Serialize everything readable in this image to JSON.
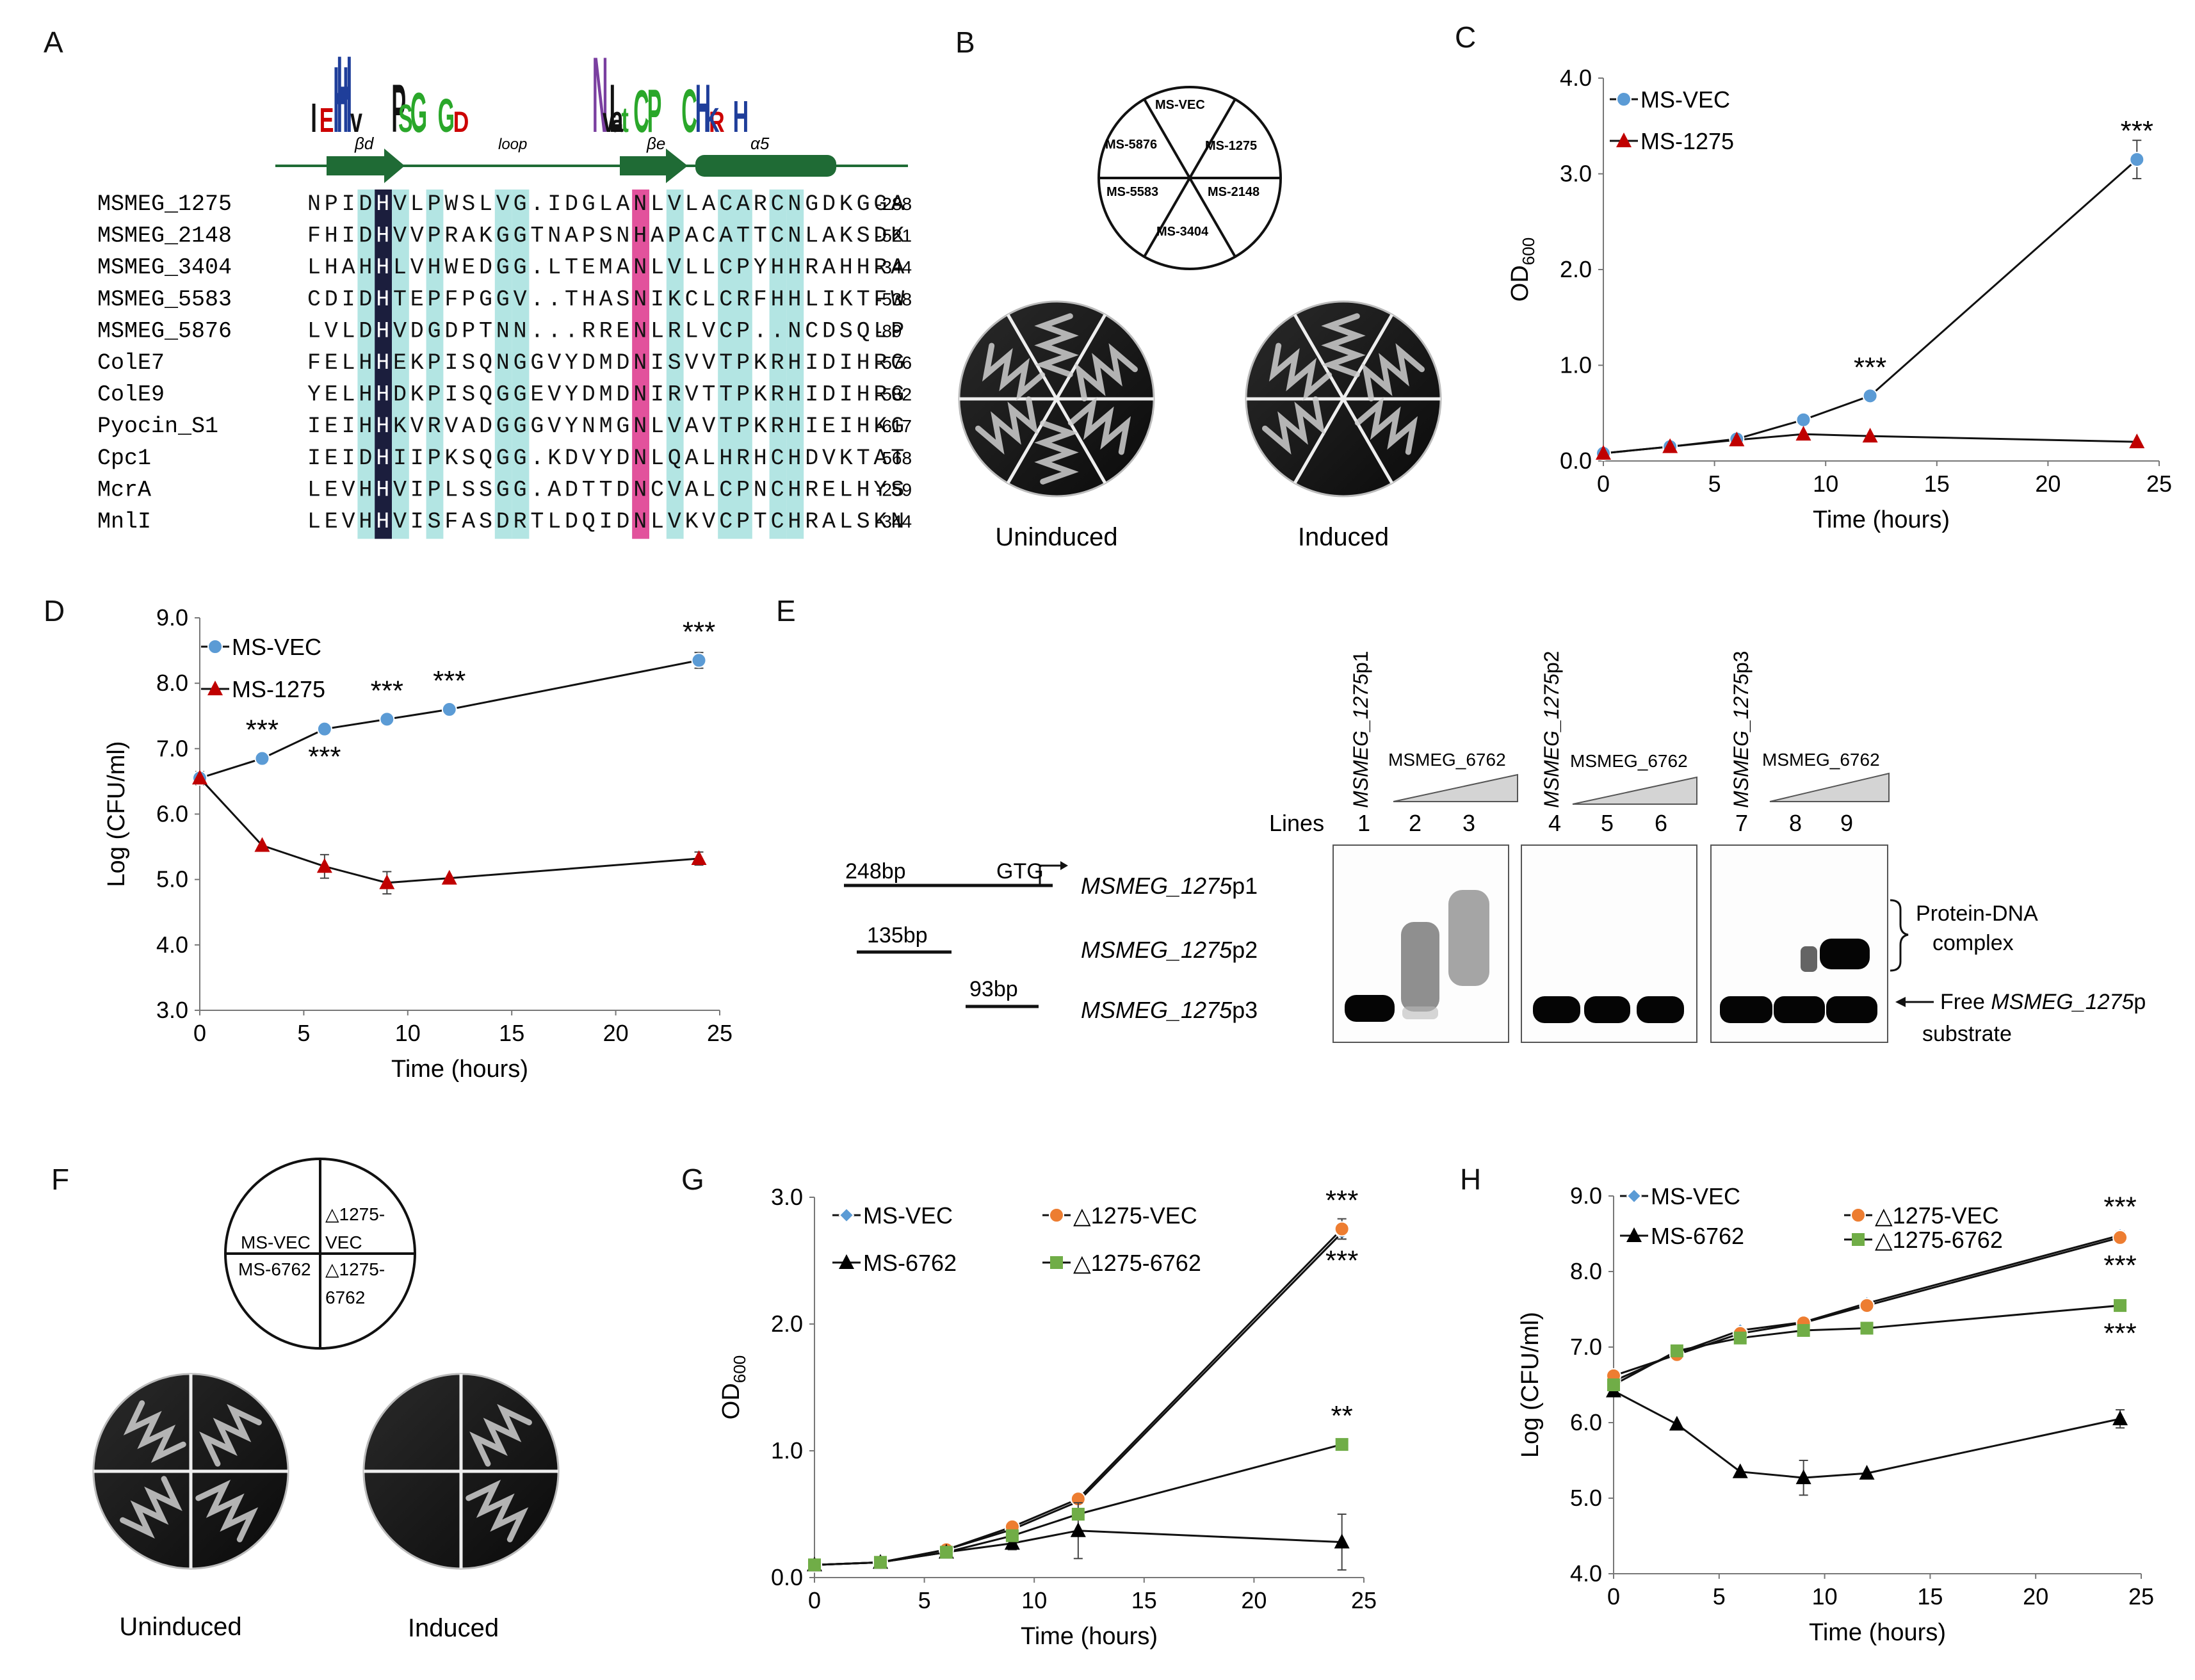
{
  "figure": {
    "panel_labels": [
      "A",
      "B",
      "C",
      "D",
      "E",
      "F",
      "G",
      "H"
    ]
  },
  "panelA": {
    "ss_labels": [
      "βd",
      "loop",
      "βe",
      "α5"
    ],
    "logo_letters": [
      {
        "t": "E",
        "c": "#cc0000"
      },
      {
        "t": "I",
        "c": "#111"
      },
      {
        "t": "H",
        "c": "#1f3e9a"
      },
      {
        "t": "H",
        "c": "#1f3e9a"
      },
      {
        "t": "v",
        "c": "#111"
      },
      {
        "t": "P",
        "c": "#111"
      },
      {
        "t": "S",
        "c": "#2aa72a"
      },
      {
        "t": "G",
        "c": "#2aa72a"
      },
      {
        "t": "G",
        "c": "#2aa72a"
      },
      {
        "t": "D",
        "c": "#cc0000"
      },
      {
        "t": "N",
        "c": "#7a3fa0"
      },
      {
        "t": "L",
        "c": "#111"
      },
      {
        "t": "v",
        "c": "#111"
      },
      {
        "t": "a",
        "c": "#111"
      },
      {
        "t": "t",
        "c": "#2aa72a"
      },
      {
        "t": "C",
        "c": "#2aa72a"
      },
      {
        "t": "P",
        "c": "#2aa72a"
      },
      {
        "t": "C",
        "c": "#2aa72a"
      },
      {
        "t": "H",
        "c": "#1f3e9a"
      },
      {
        "t": "R",
        "c": "#cc0000"
      },
      {
        "t": "K",
        "c": "#1f3e9a"
      },
      {
        "t": "H",
        "c": "#1f3e9a"
      }
    ],
    "sequences": [
      {
        "name": "MSMEG_1275",
        "seq": "NPIDHVLPWSLVG.IDGLANLVLACARCNGDKGGA",
        "end": "-288"
      },
      {
        "name": "MSMEG_2148",
        "seq": "FHIDHVVPRAKGGTNAPSNHAPACATTCNLAKSDK",
        "end": "-521"
      },
      {
        "name": "MSMEG_3404",
        "seq": "LHAHHLVHWEDGG.LTEMANLVLLCPYHHRAHHRA",
        "end": "-344"
      },
      {
        "name": "MSMEG_5583",
        "seq": "CDIDHTEPFPGGV..THASNIKCLCRFHHLIKTFW",
        "end": "-538"
      },
      {
        "name": "MSMEG_5876",
        "seq": "LVLDHVDGDPTNN...RRENLRLVCP..NCDSQLP",
        "end": "-89"
      },
      {
        "name": "ColE7",
        "seq": "FELHHEKPISQNGGVYDMDNISVVTPKRHIDIHRG",
        "end": "-576"
      },
      {
        "name": "ColE9",
        "seq": "YELHHDKPISQGGEVYDMDNIRVTTPKRHIDIHRG",
        "end": "-582"
      },
      {
        "name": "Pyocin_S1",
        "seq": "IEIHHKVRVADGGGVYNMGNLVAVTPKRHIEIHKG",
        "end": "-617"
      },
      {
        "name": "Cpc1",
        "seq": "IEIDHIIPKSQGG.KDVYDNLQALHRHCHDVKTAT",
        "end": "-568"
      },
      {
        "name": "McrA",
        "seq": "LEVHHVIPLSSGG.ADTTDNCVALCPNCHRELHYS",
        "end": "-259"
      },
      {
        "name": "MnlI",
        "seq": "LEVHHVISFASDRTLDQIDNLVKVCPTCHRALSKN",
        "end": "-344"
      }
    ]
  },
  "panelB": {
    "sectors": [
      "MS-VEC",
      "MS-1275",
      "MS-2148",
      "MS-3404",
      "MS-5583",
      "MS-5876"
    ],
    "plate_labels": [
      "Uninduced",
      "Induced"
    ]
  },
  "panelC": {
    "chart_data": {
      "type": "line",
      "title": "",
      "xlabel": "Time (hours)",
      "ylabel": "OD600",
      "ylabel_main": "OD",
      "ylabel_sub": "600",
      "xlim": [
        0,
        25
      ],
      "ylim": [
        0,
        4
      ],
      "xticks": [
        "0",
        "5",
        "10",
        "15",
        "20",
        "25"
      ],
      "yticks": [
        "0.0",
        "1.0",
        "2.0",
        "3.0",
        "4.0"
      ],
      "series": [
        {
          "name": "MS-VEC",
          "color": "#5b9bd5",
          "marker": "circle",
          "x": [
            0,
            3,
            6,
            9,
            12,
            24
          ],
          "y": [
            0.08,
            0.15,
            0.23,
            0.43,
            0.68,
            3.15
          ],
          "err": [
            0,
            0,
            0,
            0,
            0,
            0.2
          ]
        },
        {
          "name": "MS-1275",
          "color": "#c00000",
          "marker": "triangle",
          "x": [
            0,
            3,
            6,
            9,
            12,
            24
          ],
          "y": [
            0.08,
            0.15,
            0.22,
            0.28,
            0.26,
            0.2
          ],
          "err": [
            0,
            0,
            0,
            0,
            0,
            0
          ]
        }
      ],
      "annotations": [
        {
          "x": 12,
          "y": 0.68,
          "text": "***"
        },
        {
          "x": 24,
          "y": 3.15,
          "text": "***"
        }
      ]
    }
  },
  "panelD": {
    "chart_data": {
      "type": "line",
      "title": "",
      "xlabel": "Time (hours)",
      "ylabel": "Log (CFU/ml)",
      "xlim": [
        0,
        25
      ],
      "ylim": [
        3,
        9
      ],
      "xticks": [
        "0",
        "5",
        "10",
        "15",
        "20",
        "25"
      ],
      "yticks": [
        "3.0",
        "4.0",
        "5.0",
        "6.0",
        "7.0",
        "8.0",
        "9.0"
      ],
      "series": [
        {
          "name": "MS-VEC",
          "color": "#5b9bd5",
          "marker": "circle",
          "x": [
            0,
            3,
            6,
            9,
            12,
            24
          ],
          "y": [
            6.55,
            6.85,
            7.3,
            7.45,
            7.6,
            8.35
          ],
          "err": [
            0.1,
            0,
            0,
            0,
            0,
            0.12
          ]
        },
        {
          "name": "MS-1275",
          "color": "#c00000",
          "marker": "triangle",
          "x": [
            0,
            3,
            6,
            9,
            12,
            24
          ],
          "y": [
            6.55,
            5.52,
            5.2,
            4.95,
            5.02,
            5.32
          ],
          "err": [
            0,
            0,
            0.18,
            0.17,
            0,
            0.1
          ]
        }
      ],
      "annotations": [
        {
          "x": 3,
          "y": 6.85,
          "text": "***",
          "pos": "above"
        },
        {
          "x": 6,
          "y": 7.3,
          "text": "***",
          "pos": "below"
        },
        {
          "x": 9,
          "y": 7.45,
          "text": "***",
          "pos": "above"
        },
        {
          "x": 12,
          "y": 7.6,
          "text": "***",
          "pos": "above"
        },
        {
          "x": 24,
          "y": 8.35,
          "text": "***",
          "pos": "above"
        }
      ]
    }
  },
  "panelE": {
    "fragments": [
      {
        "size": "248bp",
        "name_italic": "MSMEG_1275",
        "name_suffix": "p1"
      },
      {
        "size": "135bp",
        "name_italic": "MSMEG_1275",
        "name_suffix": "p2"
      },
      {
        "size": "93bp",
        "name_italic": "MSMEG_1275",
        "name_suffix": "p3"
      }
    ],
    "gtg": "GTG",
    "lines_label": "Lines",
    "lane_numbers": [
      "1",
      "2",
      "3",
      "4",
      "5",
      "6",
      "7",
      "8",
      "9"
    ],
    "protein": "MSMEG_6762",
    "gel_titles": [
      {
        "italic": "MSMEG_1275",
        "suffix": "p1"
      },
      {
        "italic": "MSMEG_1275",
        "suffix": "p2"
      },
      {
        "italic": "MSMEG_1275",
        "suffix": "p3"
      }
    ],
    "complex_label_1": "Protein-DNA",
    "complex_label_2": "complex",
    "free_label_1a": "Free ",
    "free_label_1b": "MSMEG_1275",
    "free_label_1c": "p",
    "free_label_2": "substrate"
  },
  "panelF": {
    "sectors": [
      "MS-VEC",
      "△1275-",
      "VEC",
      "MS-6762",
      "△1275-",
      "6762"
    ],
    "plate_labels": [
      "Uninduced",
      "Induced"
    ]
  },
  "panelG": {
    "chart_data": {
      "type": "line",
      "title": "",
      "xlabel": "Time (hours)",
      "ylabel": "OD600",
      "ylabel_main": "OD",
      "ylabel_sub": "600",
      "xlim": [
        0,
        25
      ],
      "ylim": [
        0,
        3
      ],
      "xticks": [
        "0",
        "5",
        "10",
        "15",
        "20",
        "25"
      ],
      "yticks": [
        "0.0",
        "1.0",
        "2.0",
        "3.0"
      ],
      "series": [
        {
          "name": "MS-VEC",
          "color": "#5b9bd5",
          "marker": "diamond",
          "x": [
            0,
            3,
            6,
            9,
            12,
            24
          ],
          "y": [
            0.1,
            0.12,
            0.22,
            0.38,
            0.6,
            2.72
          ],
          "err": [
            0,
            0,
            0,
            0,
            0,
            0.05
          ]
        },
        {
          "name": "△1275-VEC",
          "color": "#ed7d31",
          "marker": "circle",
          "x": [
            0,
            3,
            6,
            9,
            12,
            24
          ],
          "y": [
            0.1,
            0.12,
            0.22,
            0.4,
            0.62,
            2.75
          ],
          "err": [
            0,
            0,
            0,
            0,
            0,
            0.08
          ]
        },
        {
          "name": "MS-6762",
          "color": "#000000",
          "marker": "triangle",
          "x": [
            0,
            3,
            6,
            9,
            12,
            24
          ],
          "y": [
            0.1,
            0.12,
            0.2,
            0.27,
            0.37,
            0.28
          ],
          "err": [
            0,
            0,
            0,
            0.05,
            0.22,
            0.22
          ]
        },
        {
          "name": "△1275-6762",
          "color": "#70ad47",
          "marker": "square",
          "x": [
            0,
            3,
            6,
            9,
            12,
            24
          ],
          "y": [
            0.1,
            0.12,
            0.2,
            0.33,
            0.5,
            1.05
          ],
          "err": [
            0,
            0,
            0,
            0,
            0,
            0.03
          ]
        }
      ],
      "annotations": [
        {
          "x": 24,
          "y": 2.75,
          "text": "***",
          "pos": "above"
        },
        {
          "x": 24,
          "y": 2.72,
          "text": "***",
          "pos": "below"
        },
        {
          "x": 24,
          "y": 1.05,
          "text": "**",
          "pos": "above"
        }
      ]
    }
  },
  "panelH": {
    "chart_data": {
      "type": "line",
      "title": "",
      "xlabel": "Time (hours)",
      "ylabel": "Log (CFU/ml)",
      "xlim": [
        0,
        25
      ],
      "ylim": [
        4,
        9
      ],
      "xticks": [
        "0",
        "5",
        "10",
        "15",
        "20",
        "25"
      ],
      "yticks": [
        "4.0",
        "5.0",
        "6.0",
        "7.0",
        "8.0",
        "9.0"
      ],
      "series": [
        {
          "name": "MS-VEC",
          "color": "#5b9bd5",
          "marker": "diamond",
          "x": [
            0,
            3,
            6,
            9,
            12,
            24
          ],
          "y": [
            6.55,
            6.92,
            7.22,
            7.33,
            7.58,
            8.48
          ],
          "err": [
            0,
            0,
            0,
            0,
            0,
            0.05
          ]
        },
        {
          "name": "△1275-VEC",
          "color": "#ed7d31",
          "marker": "circle",
          "x": [
            0,
            3,
            6,
            9,
            12,
            24
          ],
          "y": [
            6.62,
            6.9,
            7.18,
            7.32,
            7.55,
            8.45
          ],
          "err": [
            0,
            0,
            0,
            0,
            0,
            0.05
          ]
        },
        {
          "name": "MS-6762",
          "color": "#000000",
          "marker": "triangle",
          "x": [
            0,
            3,
            6,
            9,
            12,
            24
          ],
          "y": [
            6.42,
            5.98,
            5.35,
            5.27,
            5.33,
            6.05
          ],
          "err": [
            0,
            0,
            0,
            0.23,
            0,
            0.12
          ]
        },
        {
          "name": "△1275-6762",
          "color": "#70ad47",
          "marker": "square",
          "x": [
            0,
            3,
            6,
            9,
            12,
            24
          ],
          "y": [
            6.5,
            6.95,
            7.12,
            7.22,
            7.25,
            7.55
          ],
          "err": [
            0,
            0,
            0,
            0,
            0,
            0.05
          ]
        }
      ],
      "annotations": [
        {
          "x": 24,
          "y": 8.48,
          "text": "***",
          "pos": "above"
        },
        {
          "x": 24,
          "y": 8.45,
          "text": "***",
          "pos": "below"
        },
        {
          "x": 24,
          "y": 7.55,
          "text": "***",
          "pos": "below"
        }
      ]
    }
  }
}
